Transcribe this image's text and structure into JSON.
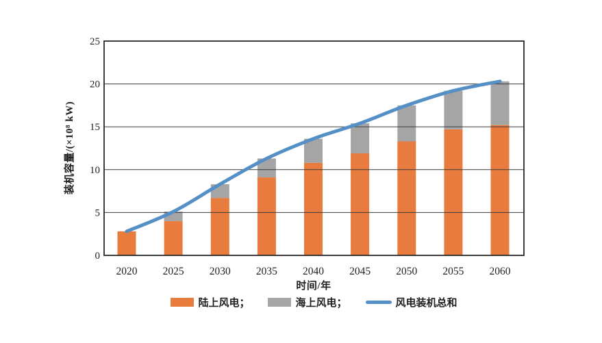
{
  "figure_title": "",
  "chart_data": {
    "type": "bar",
    "stacked": true,
    "categories": [
      "2020",
      "2025",
      "2030",
      "2035",
      "2040",
      "2045",
      "2050",
      "2055",
      "2060"
    ],
    "series": [
      {
        "name": "陆上风电",
        "kind": "bar",
        "color": "#E87C3E",
        "values": [
          2.8,
          4.0,
          6.7,
          9.1,
          10.8,
          11.9,
          13.3,
          14.7,
          15.2
        ]
      },
      {
        "name": "海上风电",
        "kind": "bar",
        "color": "#A5A5A5",
        "values": [
          0,
          1.1,
          1.6,
          2.2,
          2.8,
          3.5,
          4.2,
          4.5,
          5.1
        ]
      },
      {
        "name": "风电装机总和",
        "kind": "line",
        "color": "#548FC6",
        "values": [
          2.8,
          5.1,
          8.3,
          11.3,
          13.6,
          15.4,
          17.5,
          19.2,
          20.3
        ]
      }
    ],
    "xlabel": "时间/年",
    "ylabel": "装机容量/(×10⁸ kW)",
    "ylim": [
      0,
      25
    ],
    "yticks": [
      0,
      5,
      10,
      15,
      20,
      25
    ],
    "grid": true,
    "legend_position": "bottom"
  },
  "legend": {
    "items": [
      {
        "label": "陆上风电；",
        "swatch": "bar",
        "series_index": 0
      },
      {
        "label": "海上风电；",
        "swatch": "bar",
        "series_index": 1
      },
      {
        "label": "风电装机总和",
        "swatch": "line",
        "series_index": 2
      }
    ]
  },
  "colors": {
    "onshore_bar": "#E87C3E",
    "offshore_bar": "#A5A5A5",
    "total_line": "#548FC6",
    "gridline": "#3a3a3a",
    "plot_border": "#262626",
    "text": "#1f1f1f",
    "background": "#ffffff"
  }
}
